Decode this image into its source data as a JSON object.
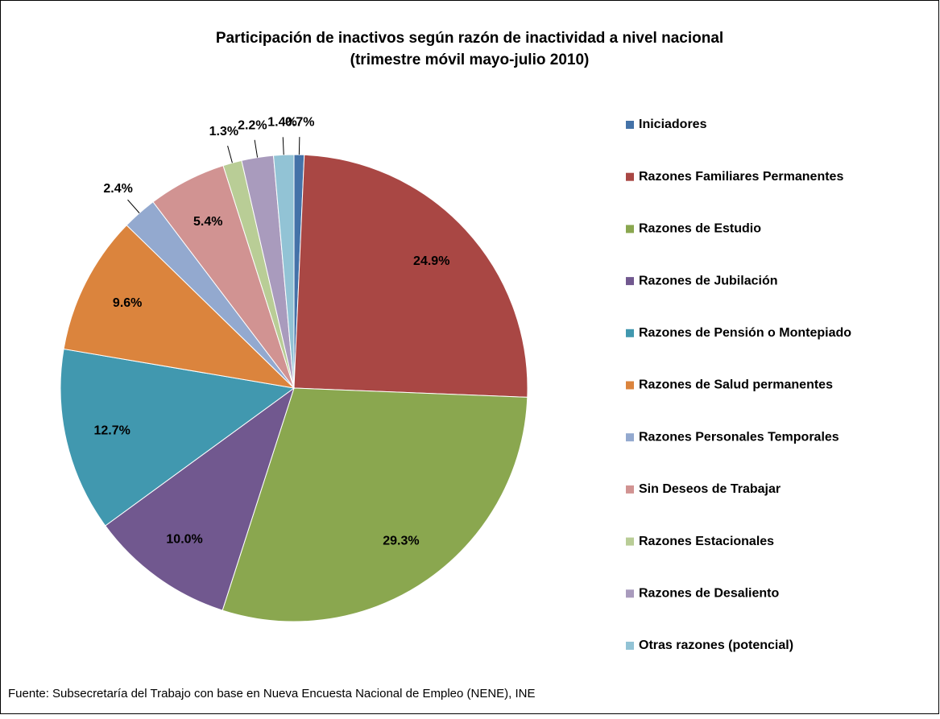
{
  "chart_data": {
    "type": "pie",
    "title": "Participación de inactivos según razón de inactividad a nivel nacional",
    "subtitle": "(trimestre móvil mayo-julio 2010)",
    "categories": [
      "Iniciadores",
      "Razones Familiares Permanentes",
      "Razones de Estudio",
      "Razones de Jubilación",
      "Razones de Pensión o Montepiado",
      "Razones de Salud permanentes",
      "Razones Personales Temporales",
      "Sin Deseos de Trabajar",
      "Razones Estacionales",
      "Razones de Desaliento",
      "Otras razones (potencial)"
    ],
    "values": [
      0.7,
      24.9,
      29.3,
      10.0,
      12.7,
      9.6,
      2.4,
      5.4,
      1.3,
      2.2,
      1.4
    ],
    "value_labels": [
      "0.7%",
      "24.9%",
      "29.3%",
      "10.0%",
      "12.7%",
      "9.6%",
      "2.4%",
      "5.4%",
      "1.3%",
      "2.2%",
      "1.4%"
    ],
    "colors": [
      "#4472a8",
      "#a94744",
      "#8aa74f",
      "#71588f",
      "#4198af",
      "#db843d",
      "#93a9cf",
      "#d19392",
      "#b9cd96",
      "#a99bbd",
      "#92c3d5"
    ],
    "legend": "right",
    "source": "Fuente: Subsecretaría del Trabajo con base en Nueva Encuesta Nacional de Empleo (NENE), INE"
  }
}
